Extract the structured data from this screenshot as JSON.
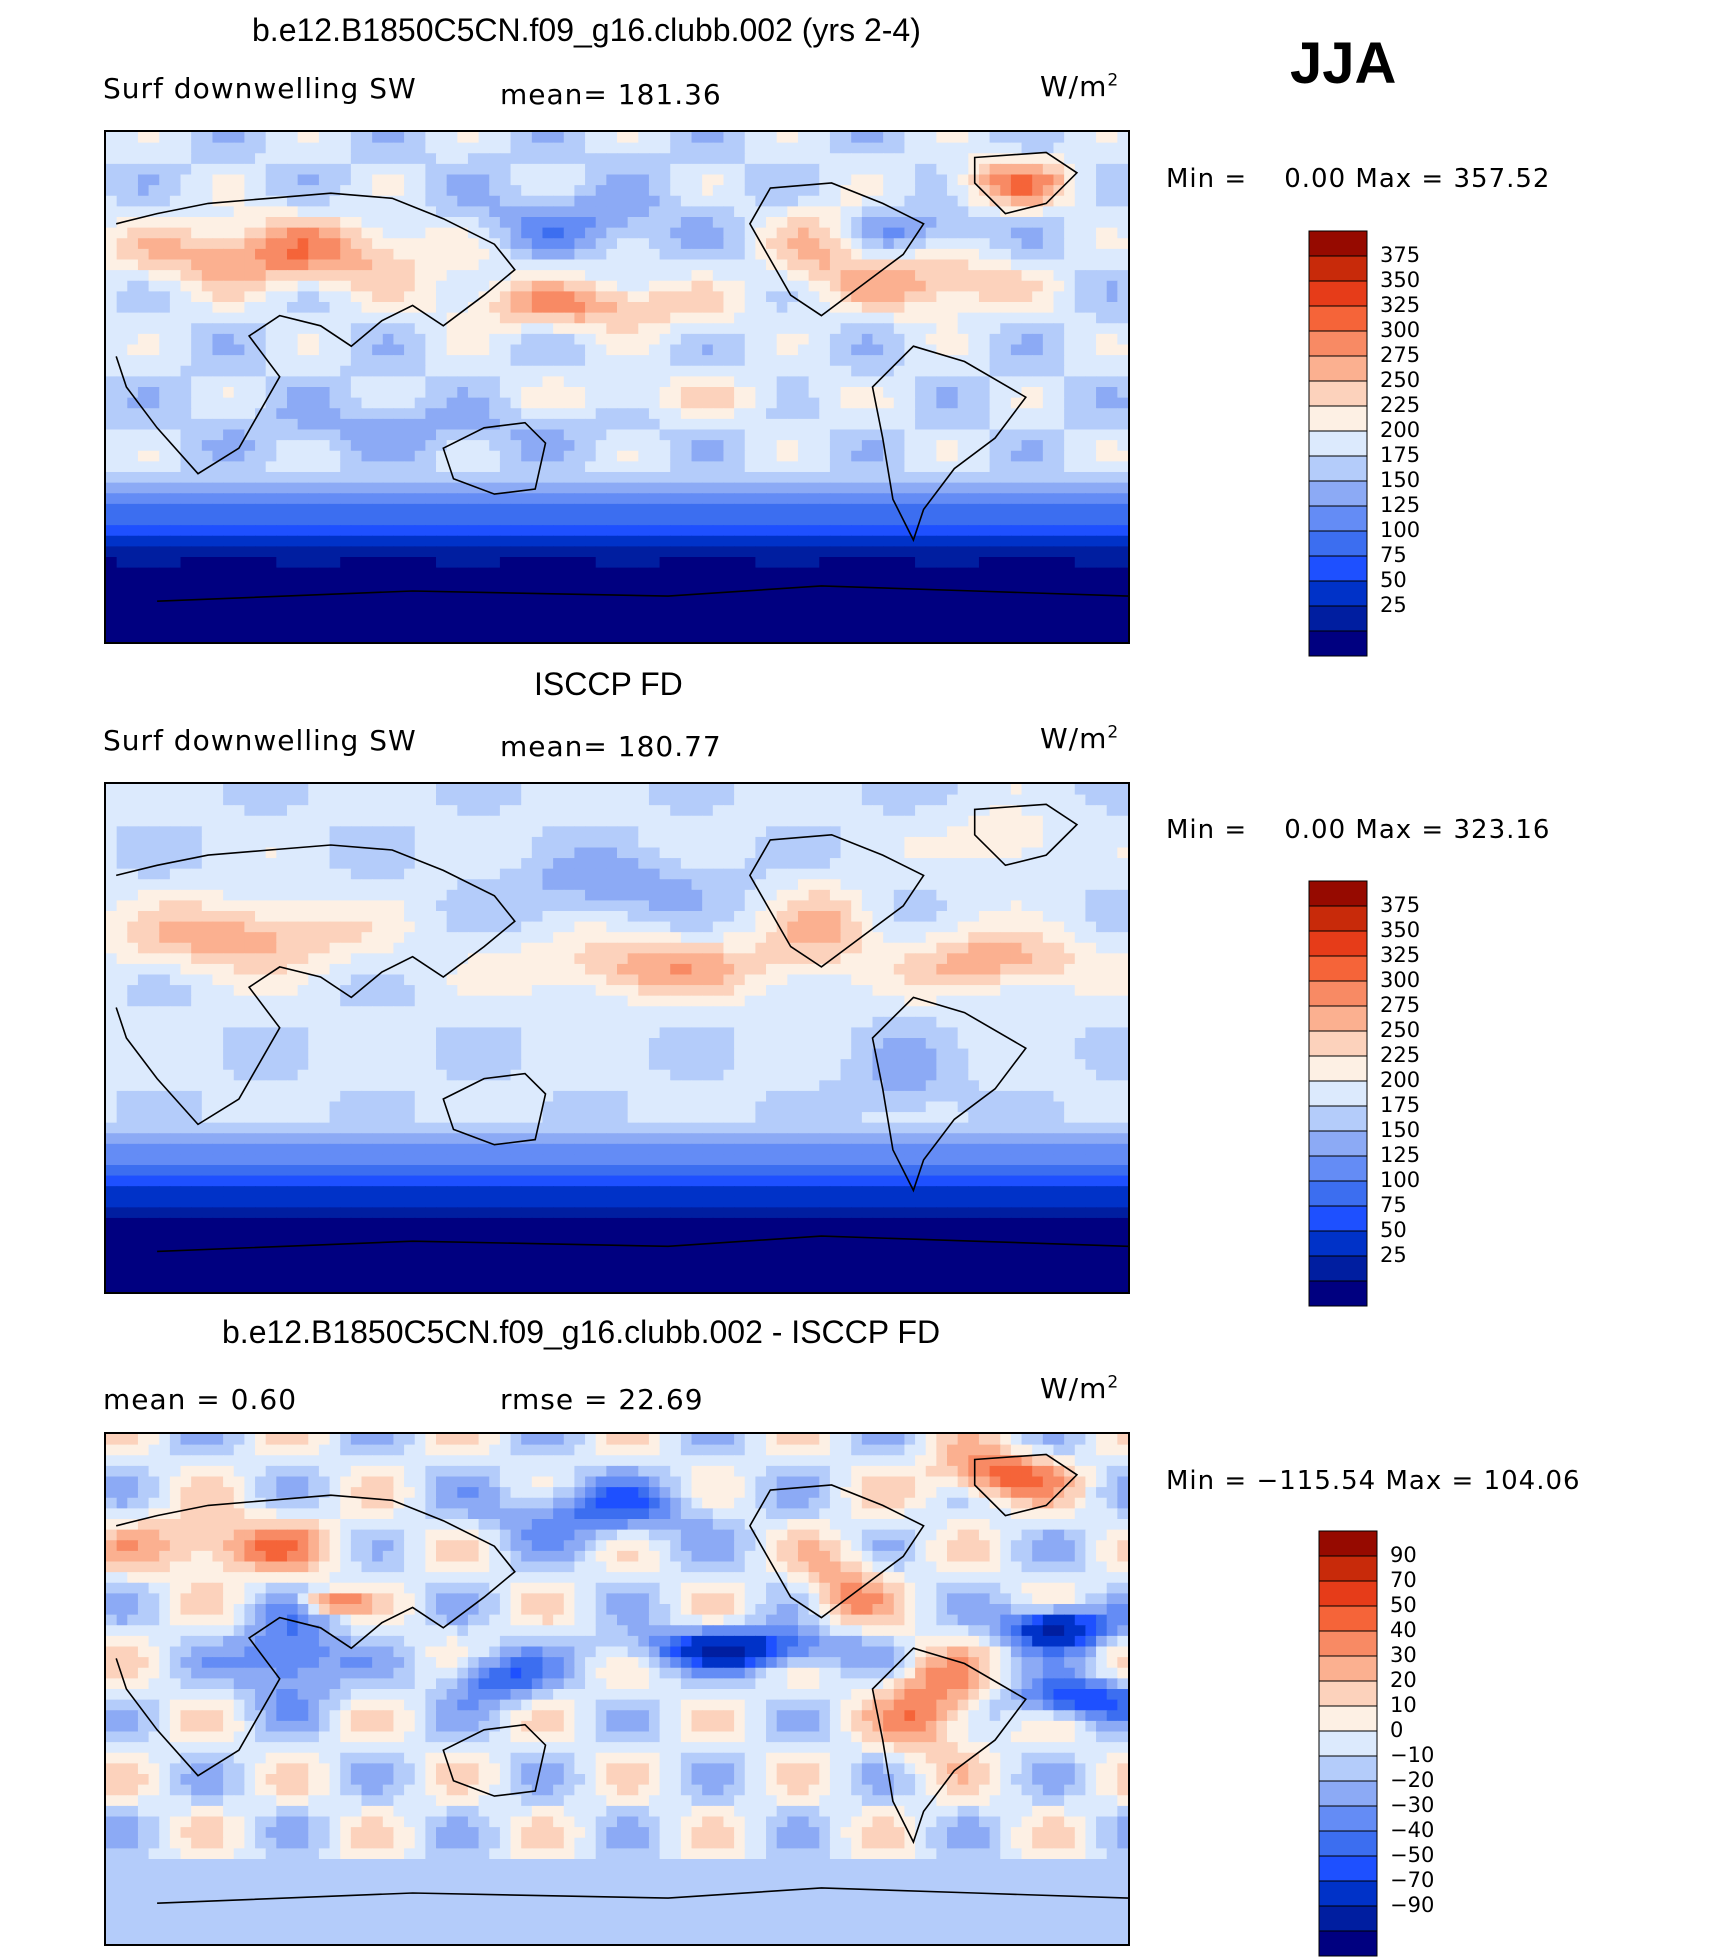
{
  "season": "JJA",
  "colors": {
    "abs_scale": [
      "#000080",
      "#001ea0",
      "#0032c8",
      "#1e50ff",
      "#3c6ef0",
      "#648cf5",
      "#8caaf5",
      "#b4ccfa",
      "#dceafd",
      "#fdf0e4",
      "#fcd2bc",
      "#fbb090",
      "#f88a64",
      "#f56439",
      "#e63c19",
      "#c82a0a",
      "#960a00"
    ],
    "diff_scale": [
      "#000080",
      "#001ea0",
      "#0032c8",
      "#1e50ff",
      "#3c6ef0",
      "#648cf5",
      "#8caaf5",
      "#b4ccfa",
      "#dceafd",
      "#fdf0e4",
      "#fcd2bc",
      "#fbb090",
      "#f88a64",
      "#f56439",
      "#e63c19",
      "#c82a0a",
      "#960a00"
    ]
  },
  "chart_data": [
    {
      "type": "heatmap",
      "title": "b.e12.B1850C5CN.f09_g16.clubb.002 (yrs 2-4)",
      "left_label": "Surf downwelling SW",
      "stat_label": "mean= 181.36",
      "units_base": "W/m",
      "units_exp": "2",
      "min_label": "Min =",
      "min_value": "0.00",
      "max_label": "Max =",
      "max_value": "357.52",
      "colorbar_levels": [
        "375",
        "350",
        "325",
        "300",
        "275",
        "250",
        "225",
        "200",
        "175",
        "150",
        "125",
        "100",
        "75",
        "50",
        "25"
      ],
      "field": "model"
    },
    {
      "type": "heatmap",
      "title": "ISCCP FD",
      "left_label": "Surf downwelling SW",
      "stat_label": "mean= 180.77",
      "units_base": "W/m",
      "units_exp": "2",
      "min_label": "Min =",
      "min_value": "0.00",
      "max_label": "Max =",
      "max_value": "323.16",
      "colorbar_levels": [
        "375",
        "350",
        "325",
        "300",
        "275",
        "250",
        "225",
        "200",
        "175",
        "150",
        "125",
        "100",
        "75",
        "50",
        "25"
      ],
      "field": "obs"
    },
    {
      "type": "heatmap",
      "title": "b.e12.B1850C5CN.f09_g16.clubb.002 - ISCCP FD",
      "left_label": "mean =    0.60",
      "stat_label": "rmse =   22.69",
      "units_base": "W/m",
      "units_exp": "2",
      "min_label": "Min =",
      "min_value": "−115.54",
      "max_label": "Max =",
      "max_value": "104.06",
      "colorbar_levels": [
        "90",
        "70",
        "50",
        "40",
        "30",
        "20",
        "10",
        "0",
        "−10",
        "−20",
        "−30",
        "−40",
        "−50",
        "−70",
        "−90"
      ],
      "field": "diff"
    }
  ]
}
